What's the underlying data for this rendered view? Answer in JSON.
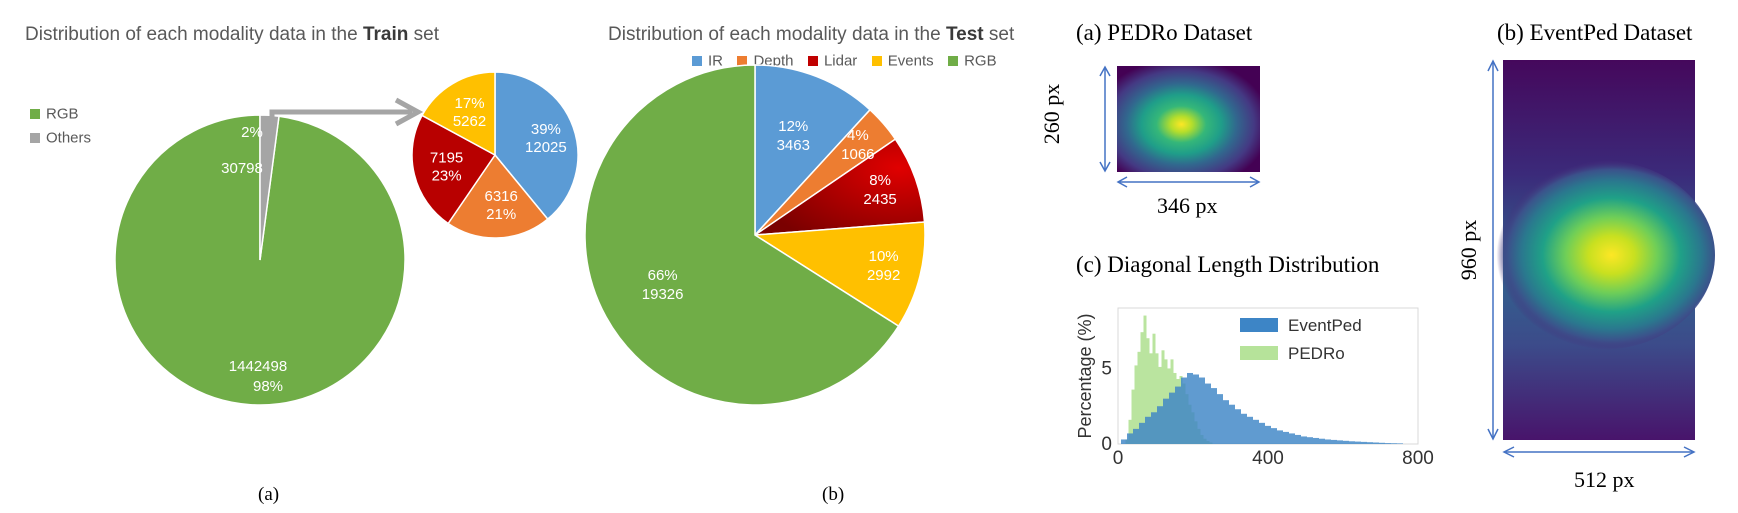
{
  "panel_a": {
    "title_prefix": "Distribution of each modality data in the ",
    "title_bold": "Train",
    "title_suffix": " set",
    "caption": "(a)"
  },
  "panel_b": {
    "title_prefix": "Distribution of each modality data in the ",
    "title_bold": "Test",
    "title_suffix": " set",
    "caption": "(b)"
  },
  "pedro": {
    "title": "(a) PEDRo Dataset",
    "height_label": "260 px",
    "width_label": "346 px"
  },
  "eventped": {
    "title": "(b) EventPed Dataset",
    "height_label": "960 px",
    "width_label": "512 px"
  },
  "colors": {
    "rgb": "#70ad47",
    "others": "#a5a5a5",
    "ir": "#5b9bd5",
    "depth": "#ed7d31",
    "lidar": "#c00000",
    "events": "#ffc000",
    "eventped_hist": "#3d85c6",
    "pedro_hist": "#b6e39a"
  },
  "chart_data": [
    {
      "type": "pie",
      "id": "train-main",
      "legend": [
        "RGB",
        "Others"
      ],
      "legend_position": "top-left",
      "slices": [
        {
          "name": "RGB",
          "value": 1442498,
          "pct": "98%",
          "color": "#70ad47"
        },
        {
          "name": "Others",
          "value": 30798,
          "pct": "2%",
          "color": "#a5a5a5"
        }
      ]
    },
    {
      "type": "pie",
      "id": "train-others-breakdown",
      "slices": [
        {
          "name": "IR",
          "value": 12025,
          "pct": "39%",
          "color": "#5b9bd5"
        },
        {
          "name": "Depth",
          "value": 6316,
          "pct": "21%",
          "color": "#ed7d31"
        },
        {
          "name": "Lidar",
          "value": 7195,
          "pct": "23%",
          "color": "#c00000"
        },
        {
          "name": "Events",
          "value": 5262,
          "pct": "17%",
          "color": "#ffc000"
        }
      ]
    },
    {
      "type": "pie",
      "id": "test",
      "legend": [
        "IR",
        "Depth",
        "Lidar",
        "Events",
        "RGB"
      ],
      "legend_position": "top",
      "slices": [
        {
          "name": "IR",
          "value": 3463,
          "pct": "12%",
          "color": "#5b9bd5"
        },
        {
          "name": "Depth",
          "value": 1066,
          "pct": "4%",
          "color": "#ed7d31"
        },
        {
          "name": "Lidar",
          "value": 2435,
          "pct": "8%",
          "color": "#c00000"
        },
        {
          "name": "Events",
          "value": 2992,
          "pct": "10%",
          "color": "#ffc000"
        },
        {
          "name": "RGB",
          "value": 19326,
          "pct": "66%",
          "color": "#70ad47"
        }
      ]
    },
    {
      "type": "heatmap",
      "id": "pedro-heatmap",
      "width": 346,
      "height": 260
    },
    {
      "type": "heatmap",
      "id": "eventped-heatmap",
      "width": 512,
      "height": 960
    },
    {
      "type": "bar",
      "id": "diagonal-histogram",
      "title": "(c) Diagonal Length Distribution",
      "ylabel": "Percentage (%)",
      "xlim": [
        0,
        800
      ],
      "ylim": [
        0,
        9
      ],
      "xticks": [
        0,
        400,
        800
      ],
      "yticks": [
        0,
        5
      ],
      "legend_position": "top-right",
      "bin_width": 16,
      "series": [
        {
          "name": "EventPed",
          "color": "#3d85c6",
          "bins": [
            [
              16,
              0.3
            ],
            [
              32,
              0.7
            ],
            [
              48,
              1.0
            ],
            [
              64,
              1.4
            ],
            [
              80,
              1.8
            ],
            [
              96,
              2.1
            ],
            [
              112,
              2.5
            ],
            [
              128,
              3.0
            ],
            [
              144,
              3.4
            ],
            [
              160,
              3.8
            ],
            [
              176,
              4.4
            ],
            [
              192,
              4.7
            ],
            [
              208,
              4.6
            ],
            [
              224,
              4.4
            ],
            [
              240,
              4.0
            ],
            [
              256,
              3.7
            ],
            [
              272,
              3.3
            ],
            [
              288,
              2.9
            ],
            [
              304,
              2.6
            ],
            [
              320,
              2.3
            ],
            [
              336,
              2.0
            ],
            [
              352,
              1.8
            ],
            [
              368,
              1.6
            ],
            [
              384,
              1.4
            ],
            [
              400,
              1.2
            ],
            [
              416,
              1.05
            ],
            [
              432,
              0.9
            ],
            [
              448,
              0.8
            ],
            [
              464,
              0.7
            ],
            [
              480,
              0.6
            ],
            [
              496,
              0.5
            ],
            [
              512,
              0.45
            ],
            [
              528,
              0.4
            ],
            [
              544,
              0.35
            ],
            [
              560,
              0.3
            ],
            [
              576,
              0.27
            ],
            [
              592,
              0.24
            ],
            [
              608,
              0.21
            ],
            [
              624,
              0.18
            ],
            [
              640,
              0.16
            ],
            [
              656,
              0.14
            ],
            [
              672,
              0.12
            ],
            [
              688,
              0.1
            ],
            [
              704,
              0.08
            ],
            [
              720,
              0.06
            ],
            [
              736,
              0.05
            ],
            [
              752,
              0.04
            ]
          ]
        },
        {
          "name": "PEDRo",
          "color": "#b6e39a",
          "bins": [
            [
              24,
              0.3
            ],
            [
              32,
              1.6
            ],
            [
              40,
              3.6
            ],
            [
              48,
              5.2
            ],
            [
              56,
              6.1
            ],
            [
              64,
              7.4
            ],
            [
              72,
              8.5
            ],
            [
              80,
              7.0
            ],
            [
              88,
              6.0
            ],
            [
              96,
              7.3
            ],
            [
              104,
              6.0
            ],
            [
              112,
              5.1
            ],
            [
              120,
              6.2
            ],
            [
              128,
              5.6
            ],
            [
              136,
              5.0
            ],
            [
              144,
              5.6
            ],
            [
              152,
              4.7
            ],
            [
              160,
              4.3
            ],
            [
              168,
              4.5
            ],
            [
              176,
              4.0
            ],
            [
              184,
              3.3
            ],
            [
              192,
              2.6
            ],
            [
              200,
              2.1
            ],
            [
              208,
              1.5
            ],
            [
              216,
              1.0
            ],
            [
              224,
              0.6
            ],
            [
              232,
              0.35
            ],
            [
              240,
              0.2
            ],
            [
              248,
              0.1
            ]
          ]
        }
      ]
    }
  ]
}
